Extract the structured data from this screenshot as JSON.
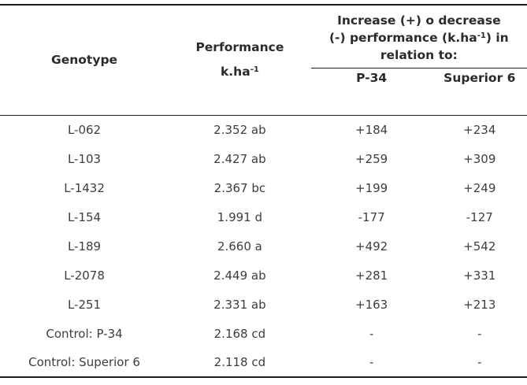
{
  "table": {
    "headers": {
      "genotype": "Genotype",
      "performance_line1": "Performance",
      "performance_unit_base": "k.ha",
      "performance_unit_sup": "-1",
      "delta_line1": "Increase (+) o decrease",
      "delta_line2_before": "(-) performance (k.ha",
      "delta_line2_sup": "-1",
      "delta_line2_after": ") in",
      "delta_line3": "relation to:",
      "p34": "P-34",
      "superior6": "Superior 6"
    },
    "rows": [
      {
        "genotype": "L-062",
        "performance": "2.352 ab",
        "p34": "+184",
        "superior6": "+234"
      },
      {
        "genotype": "L-103",
        "performance": "2.427 ab",
        "p34": "+259",
        "superior6": "+309"
      },
      {
        "genotype": "L-1432",
        "performance": "2.367 bc",
        "p34": "+199",
        "superior6": "+249"
      },
      {
        "genotype": "L-154",
        "performance": "1.991 d",
        "p34": "-177",
        "superior6": "-127"
      },
      {
        "genotype": "L-189",
        "performance": "2.660 a",
        "p34": "+492",
        "superior6": "+542"
      },
      {
        "genotype": "L-2078",
        "performance": "2.449 ab",
        "p34": "+281",
        "superior6": "+331"
      },
      {
        "genotype": "L-251",
        "performance": "2.331 ab",
        "p34": "+163",
        "superior6": "+213"
      },
      {
        "genotype": "Control: P-34",
        "performance": "2.168 cd",
        "p34": "-",
        "superior6": "-"
      },
      {
        "genotype": "Control: Superior 6",
        "performance": "2.118 cd",
        "p34": "-",
        "superior6": "-"
      }
    ],
    "colors": {
      "rule": "#1c1c1c",
      "header_text": "#2b2b2b",
      "body_text": "#3d3d3d",
      "background": "#ffffff"
    }
  }
}
